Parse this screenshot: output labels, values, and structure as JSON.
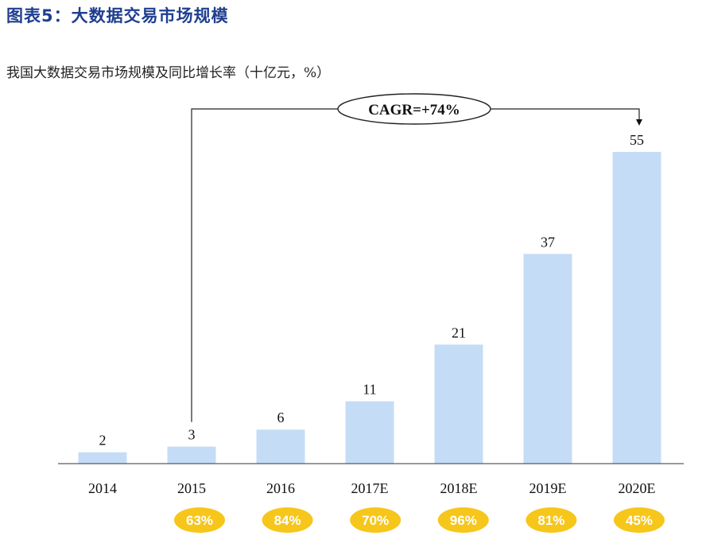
{
  "figure": {
    "title": "图表5：大数据交易市场规模",
    "subtitle": "我国大数据交易市场规模及同比增长率（十亿元，%）"
  },
  "colors": {
    "bar": "#c5dcf7",
    "badge": "#f7c61b",
    "title": "#1f3e8f"
  },
  "chart_data": {
    "type": "bar",
    "categories": [
      "2014",
      "2015",
      "2016",
      "2017E",
      "2018E",
      "2019E",
      "2020E"
    ],
    "values": [
      2,
      3,
      6,
      11,
      21,
      37,
      55
    ],
    "data_labels": [
      "2",
      "3",
      "6",
      "11",
      "21",
      "37",
      "55"
    ],
    "growth_rates": [
      "",
      "63%",
      "84%",
      "70%",
      "96%",
      "81%",
      "45%"
    ],
    "annotation": {
      "text": "CAGR=+74%",
      "from": "2015",
      "to": "2020E"
    },
    "ylim": [
      0,
      55
    ],
    "grid": false,
    "legend": "none"
  }
}
